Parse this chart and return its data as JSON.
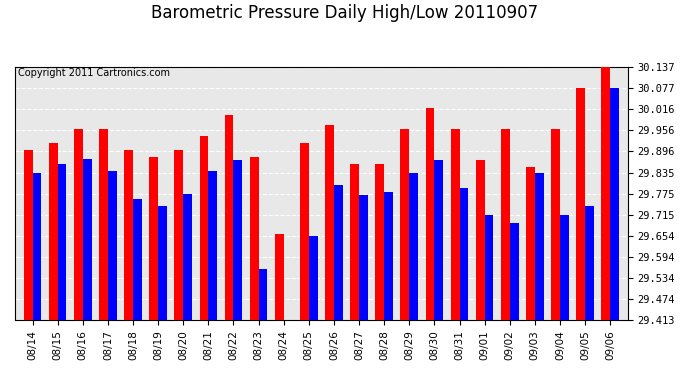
{
  "title": "Barometric Pressure Daily High/Low 20110907",
  "copyright": "Copyright 2011 Cartronics.com",
  "dates": [
    "08/14",
    "08/15",
    "08/16",
    "08/17",
    "08/18",
    "08/19",
    "08/20",
    "08/21",
    "08/22",
    "08/23",
    "08/24",
    "08/25",
    "08/26",
    "08/27",
    "08/28",
    "08/29",
    "08/30",
    "08/31",
    "09/01",
    "09/02",
    "09/03",
    "09/04",
    "09/05",
    "09/06"
  ],
  "highs": [
    29.9,
    29.92,
    29.96,
    29.96,
    29.9,
    29.88,
    29.9,
    29.94,
    30.0,
    29.88,
    29.66,
    29.92,
    29.97,
    29.86,
    29.86,
    29.96,
    30.02,
    29.96,
    29.87,
    29.96,
    29.85,
    29.96,
    30.077,
    30.137
  ],
  "lows": [
    29.835,
    29.86,
    29.875,
    29.84,
    29.76,
    29.74,
    29.775,
    29.84,
    29.87,
    29.56,
    29.413,
    29.655,
    29.8,
    29.77,
    29.78,
    29.835,
    29.87,
    29.79,
    29.715,
    29.69,
    29.835,
    29.715,
    29.74,
    30.077
  ],
  "high_color": "#FF0000",
  "low_color": "#0000FF",
  "bg_color": "#FFFFFF",
  "plot_bg_color": "#FFFFFF",
  "grid_color": "#FFFFFF",
  "yticks": [
    29.413,
    29.474,
    29.534,
    29.594,
    29.654,
    29.715,
    29.775,
    29.835,
    29.896,
    29.956,
    30.016,
    30.077,
    30.137
  ],
  "ymin": 29.413,
  "ymax": 30.137,
  "title_fontsize": 12,
  "tick_fontsize": 7.5,
  "copyright_fontsize": 7
}
